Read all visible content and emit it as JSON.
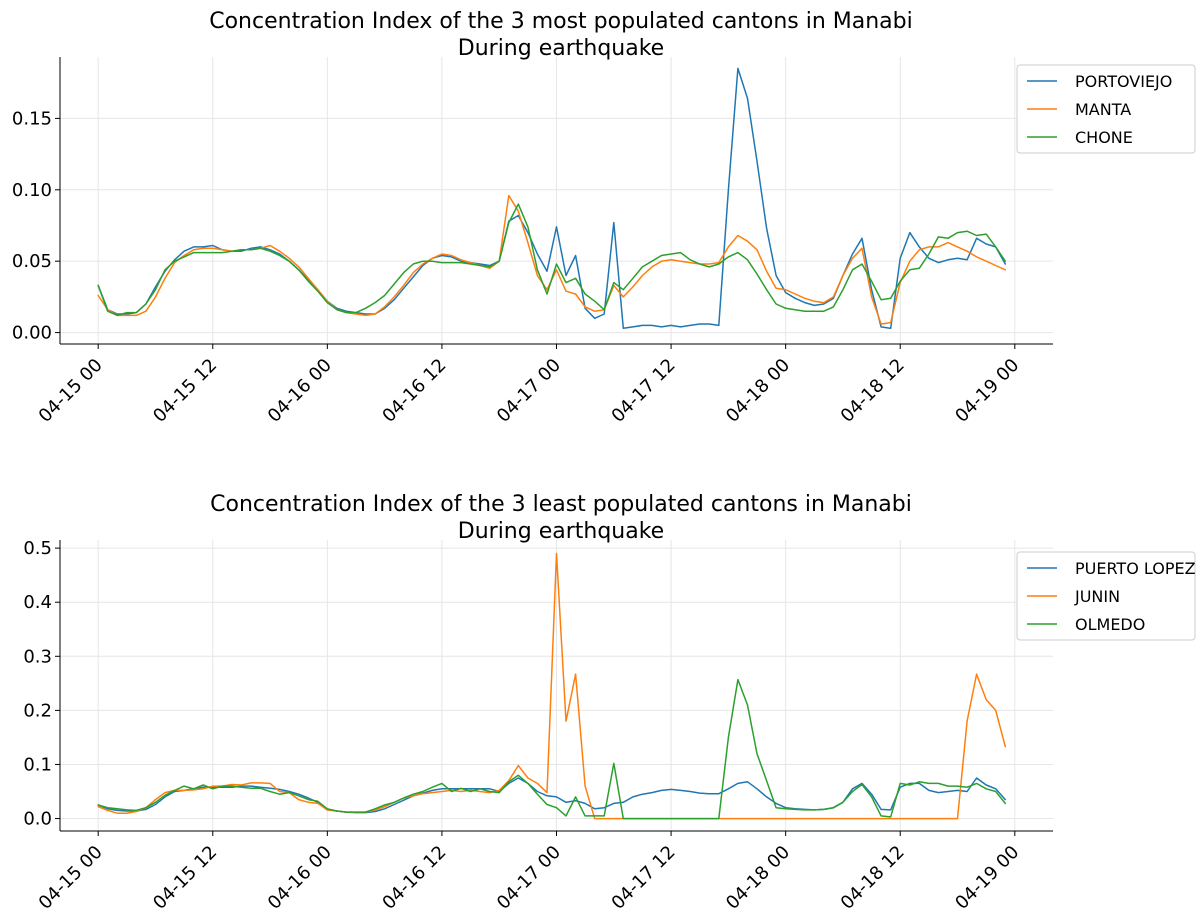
{
  "chart_data": [
    {
      "type": "line",
      "title": "Concentration Index of the 3 most populated cantons in Manabi",
      "subtitle": "During earthquake",
      "xlabel": "",
      "ylabel": "",
      "x_tick_labels": [
        "04-15 00",
        "04-15 12",
        "04-16 00",
        "04-16 12",
        "04-17 00",
        "04-17 12",
        "04-18 00",
        "04-18 12",
        "04-19 00"
      ],
      "x_tick_hours": [
        0,
        12,
        24,
        36,
        48,
        60,
        72,
        84,
        96
      ],
      "x_range_hours": [
        -4,
        100
      ],
      "x_step_hours": 1,
      "y_ticks": [
        0.0,
        0.05,
        0.1,
        0.15
      ],
      "y_tick_labels": [
        "0.00",
        "0.05",
        "0.10",
        "0.15"
      ],
      "ylim": [
        -0.008,
        0.193
      ],
      "grid": true,
      "legend_position": "upper-right, outside",
      "series": [
        {
          "name": "PORTOVIEJO",
          "color": "#1f77b4",
          "values": [
            0.033,
            0.016,
            0.013,
            0.013,
            0.014,
            0.02,
            0.032,
            0.043,
            0.051,
            0.057,
            0.06,
            0.06,
            0.061,
            0.058,
            0.057,
            0.057,
            0.059,
            0.06,
            0.058,
            0.055,
            0.05,
            0.044,
            0.037,
            0.03,
            0.022,
            0.017,
            0.015,
            0.014,
            0.013,
            0.013,
            0.017,
            0.023,
            0.031,
            0.039,
            0.047,
            0.052,
            0.054,
            0.053,
            0.05,
            0.049,
            0.048,
            0.047,
            0.05,
            0.078,
            0.082,
            0.07,
            0.055,
            0.043,
            0.074,
            0.04,
            0.054,
            0.017,
            0.01,
            0.013,
            0.077,
            0.003,
            0.004,
            0.005,
            0.005,
            0.004,
            0.005,
            0.004,
            0.005,
            0.006,
            0.006,
            0.005,
            0.1,
            0.185,
            0.164,
            0.12,
            0.073,
            0.04,
            0.028,
            0.024,
            0.021,
            0.019,
            0.02,
            0.024,
            0.04,
            0.055,
            0.066,
            0.03,
            0.004,
            0.003,
            0.052,
            0.07,
            0.06,
            0.052,
            0.049,
            0.051,
            0.052,
            0.051,
            0.066,
            0.062,
            0.06,
            0.048
          ]
        },
        {
          "name": "MANTA",
          "color": "#ff7f0e",
          "values": [
            0.026,
            0.016,
            0.012,
            0.012,
            0.012,
            0.015,
            0.025,
            0.038,
            0.049,
            0.054,
            0.058,
            0.059,
            0.059,
            0.058,
            0.057,
            0.058,
            0.058,
            0.059,
            0.061,
            0.057,
            0.052,
            0.046,
            0.038,
            0.03,
            0.022,
            0.016,
            0.014,
            0.013,
            0.012,
            0.013,
            0.018,
            0.025,
            0.033,
            0.042,
            0.048,
            0.052,
            0.055,
            0.054,
            0.051,
            0.049,
            0.047,
            0.045,
            0.05,
            0.096,
            0.085,
            0.063,
            0.04,
            0.03,
            0.044,
            0.029,
            0.027,
            0.018,
            0.015,
            0.016,
            0.033,
            0.025,
            0.032,
            0.04,
            0.046,
            0.05,
            0.051,
            0.05,
            0.049,
            0.048,
            0.048,
            0.049,
            0.06,
            0.068,
            0.064,
            0.058,
            0.043,
            0.031,
            0.03,
            0.027,
            0.024,
            0.022,
            0.021,
            0.025,
            0.04,
            0.052,
            0.059,
            0.025,
            0.006,
            0.007,
            0.035,
            0.05,
            0.058,
            0.06,
            0.06,
            0.063,
            0.06,
            0.057,
            0.053,
            0.05,
            0.047,
            0.044
          ]
        },
        {
          "name": "CHONE",
          "color": "#2ca02c",
          "values": [
            0.033,
            0.015,
            0.012,
            0.014,
            0.014,
            0.02,
            0.03,
            0.044,
            0.05,
            0.053,
            0.056,
            0.056,
            0.056,
            0.056,
            0.057,
            0.058,
            0.058,
            0.059,
            0.057,
            0.054,
            0.05,
            0.044,
            0.036,
            0.029,
            0.021,
            0.016,
            0.014,
            0.014,
            0.017,
            0.021,
            0.026,
            0.034,
            0.042,
            0.048,
            0.05,
            0.05,
            0.049,
            0.049,
            0.049,
            0.048,
            0.047,
            0.046,
            0.05,
            0.077,
            0.09,
            0.074,
            0.044,
            0.027,
            0.048,
            0.035,
            0.038,
            0.027,
            0.022,
            0.016,
            0.035,
            0.03,
            0.038,
            0.046,
            0.05,
            0.054,
            0.055,
            0.056,
            0.051,
            0.048,
            0.046,
            0.048,
            0.053,
            0.056,
            0.051,
            0.041,
            0.03,
            0.02,
            0.017,
            0.016,
            0.015,
            0.015,
            0.015,
            0.018,
            0.03,
            0.044,
            0.048,
            0.036,
            0.023,
            0.024,
            0.036,
            0.044,
            0.045,
            0.055,
            0.067,
            0.066,
            0.07,
            0.071,
            0.068,
            0.069,
            0.06,
            0.05
          ]
        }
      ]
    },
    {
      "type": "line",
      "title": "Concentration Index of the 3 least populated cantons in Manabi",
      "subtitle": "During earthquake",
      "xlabel": "",
      "ylabel": "",
      "x_tick_labels": [
        "04-15 00",
        "04-15 12",
        "04-16 00",
        "04-16 12",
        "04-17 00",
        "04-17 12",
        "04-18 00",
        "04-18 12",
        "04-19 00"
      ],
      "x_tick_hours": [
        0,
        12,
        24,
        36,
        48,
        60,
        72,
        84,
        96
      ],
      "x_range_hours": [
        -4,
        100
      ],
      "x_step_hours": 1,
      "y_ticks": [
        0.0,
        0.1,
        0.2,
        0.3,
        0.4,
        0.5
      ],
      "y_tick_labels": [
        "0.0",
        "0.1",
        "0.2",
        "0.3",
        "0.4",
        "0.5"
      ],
      "ylim": [
        -0.023,
        0.515
      ],
      "grid": true,
      "legend_position": "upper-right, outside",
      "series": [
        {
          "name": "PUERTO LOPEZ",
          "color": "#1f77b4",
          "values": [
            0.025,
            0.018,
            0.015,
            0.014,
            0.014,
            0.017,
            0.026,
            0.04,
            0.05,
            0.052,
            0.055,
            0.058,
            0.058,
            0.058,
            0.058,
            0.06,
            0.06,
            0.058,
            0.056,
            0.054,
            0.05,
            0.045,
            0.038,
            0.03,
            0.016,
            0.014,
            0.012,
            0.011,
            0.011,
            0.013,
            0.018,
            0.026,
            0.034,
            0.042,
            0.047,
            0.052,
            0.055,
            0.055,
            0.055,
            0.055,
            0.055,
            0.055,
            0.05,
            0.065,
            0.075,
            0.065,
            0.05,
            0.042,
            0.04,
            0.03,
            0.033,
            0.028,
            0.018,
            0.02,
            0.028,
            0.03,
            0.04,
            0.045,
            0.048,
            0.052,
            0.054,
            0.052,
            0.05,
            0.047,
            0.046,
            0.046,
            0.055,
            0.065,
            0.068,
            0.055,
            0.04,
            0.028,
            0.02,
            0.018,
            0.017,
            0.016,
            0.017,
            0.02,
            0.03,
            0.055,
            0.065,
            0.045,
            0.017,
            0.016,
            0.058,
            0.065,
            0.065,
            0.052,
            0.048,
            0.05,
            0.052,
            0.05,
            0.075,
            0.062,
            0.055,
            0.035
          ]
        },
        {
          "name": "JUNIN",
          "color": "#ff7f0e",
          "values": [
            0.022,
            0.015,
            0.01,
            0.01,
            0.013,
            0.02,
            0.035,
            0.048,
            0.052,
            0.052,
            0.053,
            0.055,
            0.06,
            0.06,
            0.063,
            0.062,
            0.066,
            0.066,
            0.065,
            0.05,
            0.048,
            0.035,
            0.03,
            0.028,
            0.016,
            0.014,
            0.012,
            0.012,
            0.012,
            0.016,
            0.022,
            0.03,
            0.038,
            0.042,
            0.046,
            0.048,
            0.05,
            0.052,
            0.05,
            0.052,
            0.05,
            0.048,
            0.052,
            0.07,
            0.098,
            0.075,
            0.065,
            0.048,
            0.49,
            0.18,
            0.267,
            0.06,
            0.0,
            0.0,
            0.0,
            0.0,
            0.0,
            0.0,
            0.0,
            0.0,
            0.0,
            0.0,
            0.0,
            0.0,
            0.0,
            0.0,
            0.0,
            0.0,
            0.0,
            0.0,
            0.0,
            0.0,
            0.0,
            0.0,
            0.0,
            0.0,
            0.0,
            0.0,
            0.0,
            0.0,
            0.0,
            0.0,
            0.0,
            0.0,
            0.0,
            0.0,
            0.0,
            0.0,
            0.0,
            0.0,
            0.0,
            0.18,
            0.267,
            0.22,
            0.2,
            0.133
          ]
        },
        {
          "name": "OLMEDO",
          "color": "#2ca02c",
          "values": [
            0.025,
            0.02,
            0.018,
            0.016,
            0.015,
            0.02,
            0.03,
            0.043,
            0.052,
            0.06,
            0.055,
            0.062,
            0.055,
            0.06,
            0.06,
            0.058,
            0.056,
            0.056,
            0.05,
            0.045,
            0.048,
            0.042,
            0.035,
            0.032,
            0.018,
            0.014,
            0.012,
            0.012,
            0.012,
            0.018,
            0.025,
            0.03,
            0.038,
            0.045,
            0.05,
            0.058,
            0.065,
            0.05,
            0.056,
            0.05,
            0.055,
            0.05,
            0.048,
            0.068,
            0.08,
            0.065,
            0.045,
            0.026,
            0.02,
            0.005,
            0.04,
            0.005,
            0.005,
            0.005,
            0.102,
            0.0,
            0.0,
            0.0,
            0.0,
            0.0,
            0.0,
            0.0,
            0.0,
            0.0,
            0.0,
            0.0,
            0.15,
            0.257,
            0.21,
            0.12,
            0.07,
            0.02,
            0.018,
            0.017,
            0.016,
            0.016,
            0.017,
            0.02,
            0.03,
            0.05,
            0.063,
            0.04,
            0.005,
            0.003,
            0.065,
            0.062,
            0.068,
            0.065,
            0.065,
            0.06,
            0.06,
            0.058,
            0.065,
            0.055,
            0.05,
            0.028
          ]
        }
      ]
    }
  ]
}
